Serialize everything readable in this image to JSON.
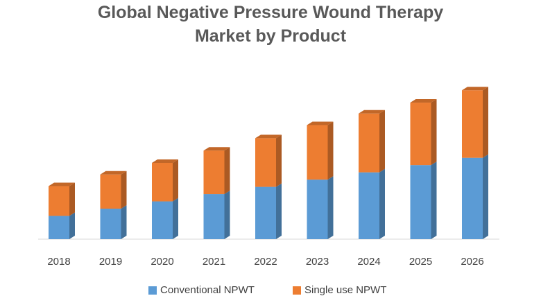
{
  "chart_data": {
    "type": "bar",
    "stacked": true,
    "style": "3d-column",
    "title_lines": [
      "Global Negative Pressure Wound Therapy",
      "Market by Product"
    ],
    "categories": [
      "2018",
      "2019",
      "2020",
      "2021",
      "2022",
      "2023",
      "2024",
      "2025",
      "2026"
    ],
    "series": [
      {
        "name": "Conventional NPWT",
        "color": "#5B9BD5",
        "values": [
          32,
          42,
          52,
          62,
          72,
          82,
          92,
          102,
          112
        ]
      },
      {
        "name": "Single use NPWT",
        "color": "#ED7D31",
        "values": [
          41,
          47,
          53,
          60,
          67,
          75,
          81,
          86,
          93
        ]
      }
    ],
    "xlabel": "",
    "ylabel": "",
    "ylim": [
      0,
      210
    ],
    "gridlines": false,
    "legend_position": "bottom"
  }
}
